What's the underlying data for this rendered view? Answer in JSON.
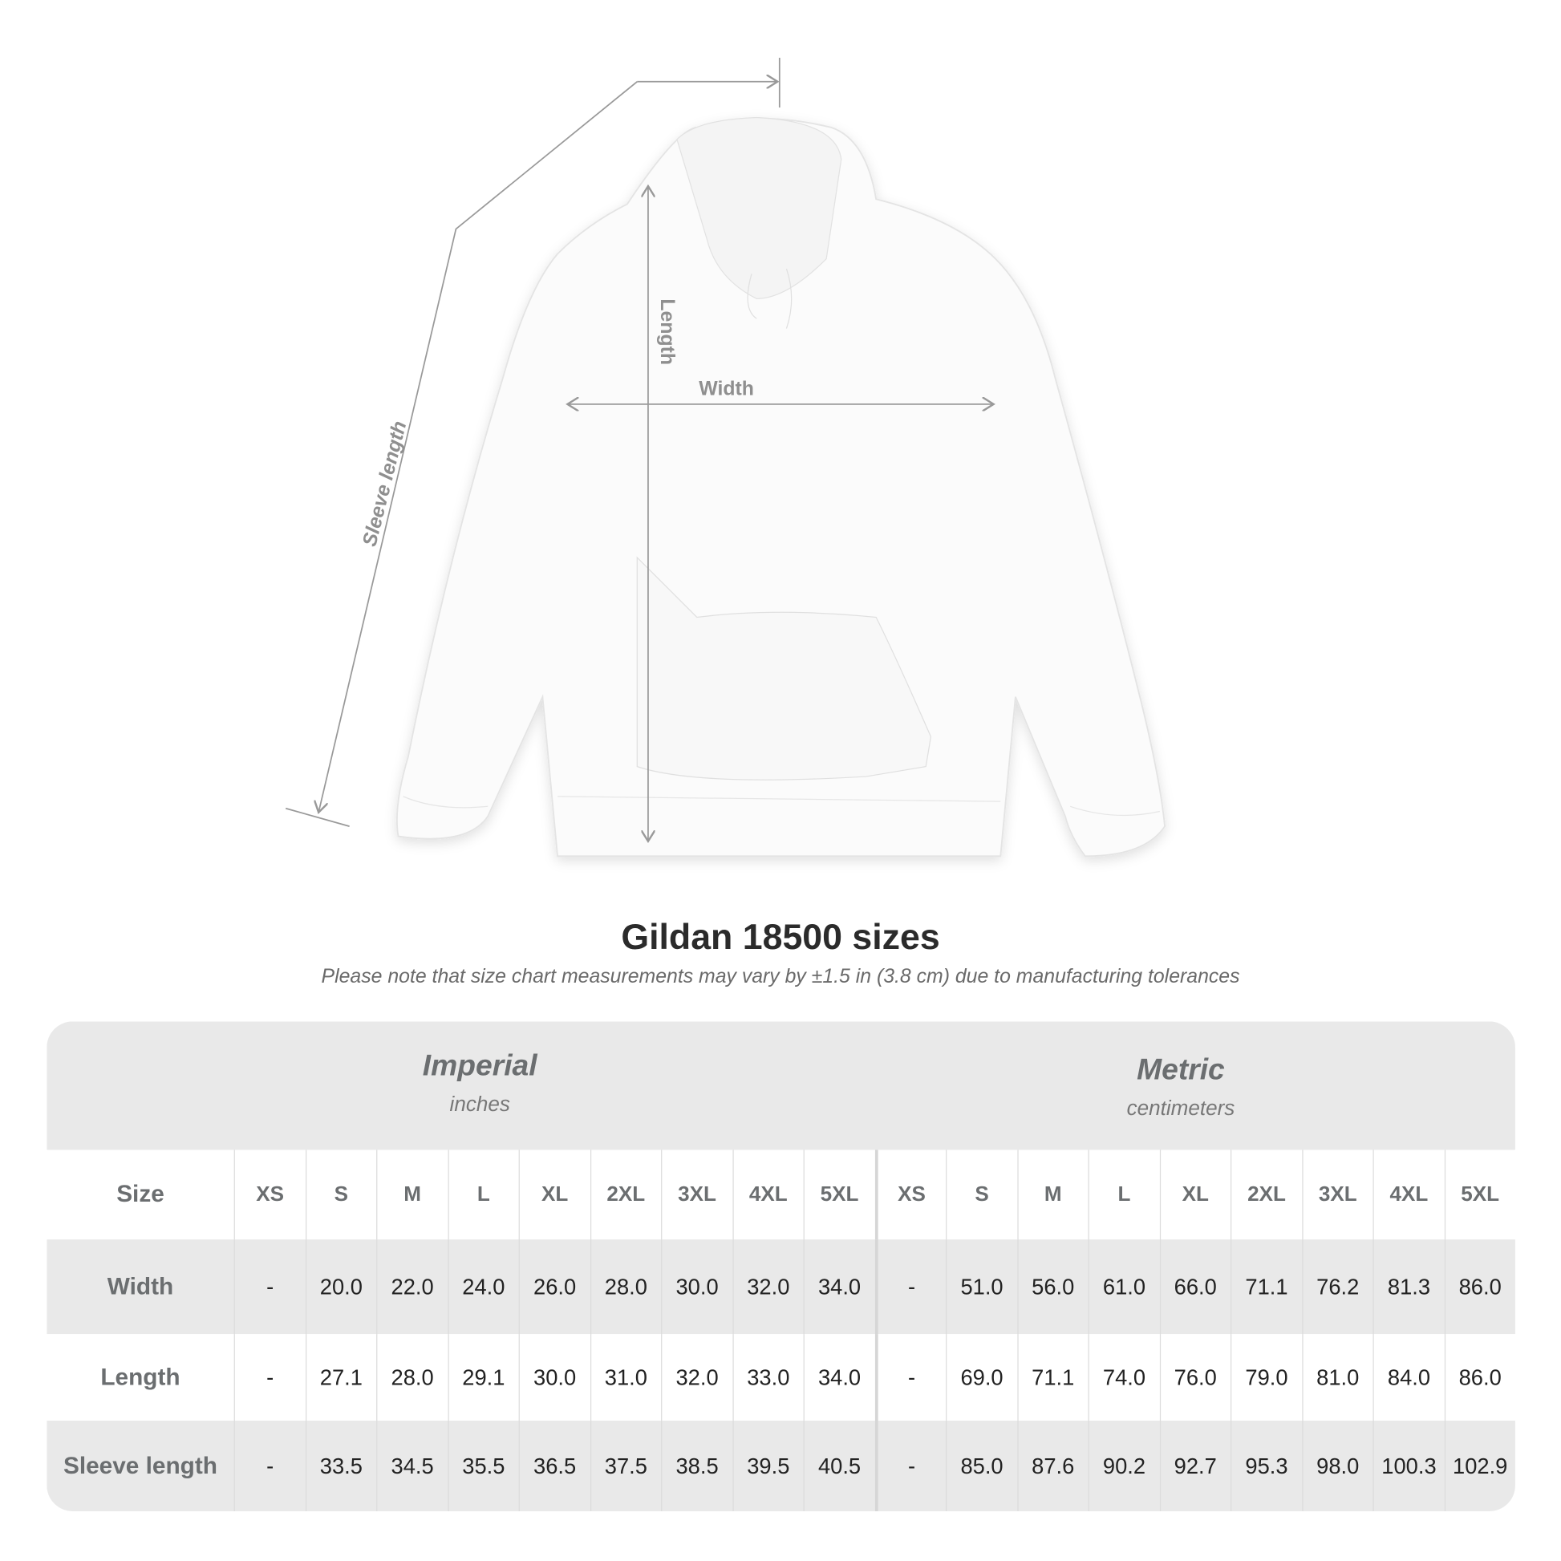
{
  "diagram": {
    "labels": {
      "sleeve": "Sleeve length",
      "length": "Length",
      "width": "Width"
    },
    "line_color": "#999999"
  },
  "title": "Gildan 18500 sizes",
  "note": "Please note that size chart measurements may vary by ±1.5 in (3.8 cm) due to manufacturing tolerances",
  "table": {
    "imperial": {
      "name": "Imperial",
      "unit": "inches"
    },
    "metric": {
      "name": "Metric",
      "unit": "centimeters"
    },
    "size_label": "Size",
    "sizes": [
      "XS",
      "S",
      "M",
      "L",
      "XL",
      "2XL",
      "3XL",
      "4XL",
      "5XL"
    ],
    "rows": [
      {
        "label": "Width",
        "imperial": [
          "-",
          "20.0",
          "22.0",
          "24.0",
          "26.0",
          "28.0",
          "30.0",
          "32.0",
          "34.0"
        ],
        "metric": [
          "-",
          "51.0",
          "56.0",
          "61.0",
          "66.0",
          "71.1",
          "76.2",
          "81.3",
          "86.0"
        ]
      },
      {
        "label": "Length",
        "imperial": [
          "-",
          "27.1",
          "28.0",
          "29.1",
          "30.0",
          "31.0",
          "32.0",
          "33.0",
          "34.0"
        ],
        "metric": [
          "-",
          "69.0",
          "71.1",
          "74.0",
          "76.0",
          "79.0",
          "81.0",
          "84.0",
          "86.0"
        ]
      },
      {
        "label": "Sleeve length",
        "imperial": [
          "-",
          "33.5",
          "34.5",
          "35.5",
          "36.5",
          "37.5",
          "38.5",
          "39.5",
          "40.5"
        ],
        "metric": [
          "-",
          "85.0",
          "87.6",
          "90.2",
          "92.7",
          "95.3",
          "98.0",
          "100.3",
          "102.9"
        ]
      }
    ],
    "band_color": "#e9e9e9"
  }
}
